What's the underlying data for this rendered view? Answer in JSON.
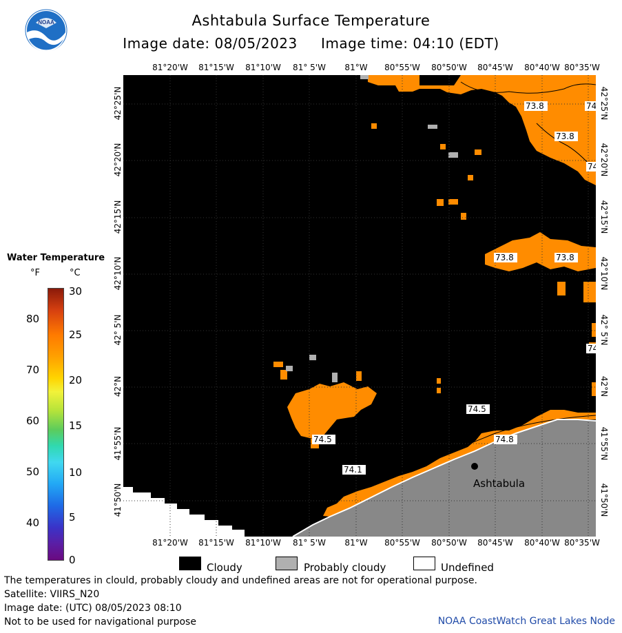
{
  "title": "Ashtabula Surface Temperature",
  "subtitle": "Image date: 08/05/2023     Image time: 04:10 (EDT)",
  "logo_text": "NOAA",
  "colors": {
    "water": "#ff8c00",
    "cloudy": "#000000",
    "probably_cloudy": "#b0b0b0",
    "land": "#888888",
    "undefined": "#ffffff",
    "credit": "#1f4aa8"
  },
  "legend": {
    "title": "Water Temperature",
    "unit_f": "°F",
    "unit_c": "°C",
    "f_ticks": [
      "80",
      "70",
      "60",
      "50",
      "40"
    ],
    "c_ticks": [
      "30",
      "25",
      "20",
      "15",
      "10",
      "5",
      "0"
    ]
  },
  "axes": {
    "top_ticks": [
      "81°20'W",
      "81°15'W",
      "81°10'W",
      "81° 5'W",
      "81°W",
      "80°55'W",
      "80°50'W",
      "80°45'W",
      "80°40'W",
      "80°35'W"
    ],
    "bottom_ticks": [
      "81°20'W",
      "81°15'W",
      "81°10'W",
      "81° 5'W",
      "81°W",
      "80°55'W",
      "80°50'W",
      "80°45'W",
      "80°40'W",
      "80°35'W"
    ],
    "left_ticks": [
      "42°25'N",
      "42°20'N",
      "42°15'N",
      "42°10'N",
      "42° 5'N",
      "42°N",
      "41°55'N",
      "41°50'N"
    ],
    "right_ticks": [
      "42°25'N",
      "42°20'N",
      "42°15'N",
      "42°10'N",
      "42° 5'N",
      "42°N",
      "41°55'N",
      "41°50'N"
    ]
  },
  "map": {
    "place_label": "Ashtabula",
    "temperature_labels": [
      "73.8",
      "74",
      "73.8",
      "74",
      "73.8",
      "73.8",
      "74",
      "74.5",
      "74.5",
      "74.8",
      "74.1"
    ]
  },
  "key": {
    "cloudy": "Cloudy",
    "probably_cloudy": "Probably cloudy",
    "undefined": "Undefined"
  },
  "footer": {
    "line1": "The temperatures in clould, probably cloudy and undefined areas are not for operational purpose.",
    "line2": "Satellite: VIIRS_N20",
    "line3": "Image date: (UTC) 08/05/2023  08:10",
    "line4": "Not to be used for navigational purpose",
    "credit": "NOAA CoastWatch Great Lakes Node"
  }
}
